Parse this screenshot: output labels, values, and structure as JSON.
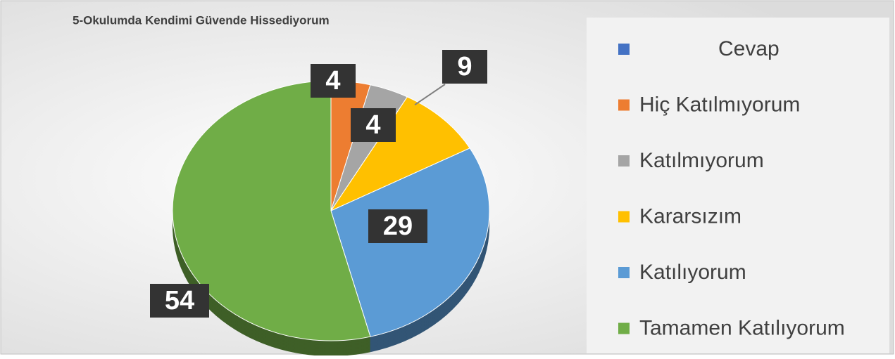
{
  "chart_data": {
    "type": "pie",
    "title": "5-Okulumda Kendimi Güvende Hissediyorum",
    "categories": [
      "Cevap",
      "Hiç Katılmıyorum",
      "Katılmıyorum",
      "Kararsızım",
      "Katılıyorum",
      "Tamamen Katılıyorum"
    ],
    "values": [
      0,
      4,
      4,
      9,
      29,
      54
    ],
    "colors": [
      "#4472c4",
      "#ed7d31",
      "#a5a5a5",
      "#ffc000",
      "#5b9bd5",
      "#70ad47"
    ],
    "legend": "right"
  }
}
